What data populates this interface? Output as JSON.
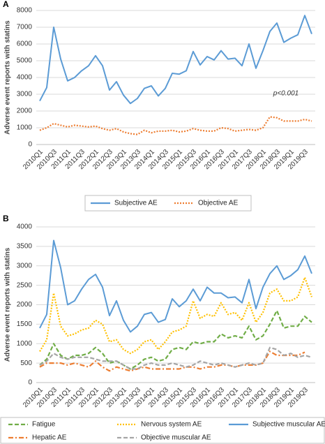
{
  "chart_data": [
    {
      "type": "line",
      "panel_label": "A",
      "y_label": "Adverse event reports with statins",
      "annotation": "p<0.001",
      "categories": [
        "2010Q1",
        null,
        "2010Q3",
        null,
        "2011Q1",
        null,
        "2011Q3",
        null,
        "2012Q1",
        null,
        "2012Q3",
        null,
        "2013Q1",
        null,
        "2013Q3",
        null,
        "2014Q1",
        null,
        "2014Q3",
        null,
        "2015Q1",
        null,
        "2015Q3",
        null,
        "2016Q1",
        null,
        "2016Q3",
        null,
        "2017Q1",
        null,
        "2017Q3",
        null,
        "2018Q1",
        null,
        "2018Q3",
        null,
        "2019Q1",
        null,
        "2019Q3",
        null
      ],
      "ylim": [
        0,
        8000
      ],
      "yticks": [
        0,
        1000,
        2000,
        3000,
        4000,
        5000,
        6000,
        7000,
        8000
      ],
      "grid": true,
      "series": [
        {
          "name": "Subjective AE",
          "color": "#5b9bd5",
          "style": "solid",
          "values": [
            2600,
            3400,
            7000,
            5100,
            3800,
            4000,
            4400,
            4700,
            5300,
            4700,
            3250,
            3750,
            2950,
            2450,
            2750,
            3350,
            3500,
            2900,
            3350,
            4250,
            4200,
            4400,
            5550,
            4750,
            5250,
            5050,
            5600,
            5100,
            5150,
            4700,
            6000,
            4550,
            5600,
            6750,
            7250,
            6100,
            6350,
            6550,
            7700,
            6600
          ]
        },
        {
          "name": "Objective AE",
          "color": "#ed7d31",
          "style": "dotted",
          "values": [
            850,
            1000,
            1250,
            1150,
            1050,
            1150,
            1100,
            1050,
            1100,
            950,
            850,
            950,
            750,
            650,
            600,
            850,
            700,
            800,
            800,
            850,
            750,
            800,
            950,
            850,
            800,
            800,
            1000,
            950,
            800,
            850,
            900,
            850,
            1000,
            1650,
            1600,
            1400,
            1400,
            1400,
            1500,
            1400
          ]
        }
      ]
    },
    {
      "type": "line",
      "panel_label": "B",
      "y_label": "Adverse event reports with statins",
      "categories": [
        "2010Q1",
        null,
        "2010Q3",
        null,
        "2011Q1",
        null,
        "2011Q3",
        null,
        "2012Q1",
        null,
        "2012Q3",
        null,
        "2013Q1",
        null,
        "2013Q3",
        null,
        "2014Q1",
        null,
        "2014Q3",
        null,
        "2015Q1",
        null,
        "2015Q3",
        null,
        "2016Q1",
        null,
        "2016Q3",
        null,
        "2017Q1",
        null,
        "2017Q3",
        null,
        "2018Q1",
        null,
        "2018Q3",
        null,
        "2019Q1",
        null,
        "2019Q3",
        null
      ],
      "ylim": [
        0,
        4000
      ],
      "yticks": [
        0,
        500,
        1000,
        1500,
        2000,
        2500,
        3000,
        3500,
        4000
      ],
      "grid": true,
      "series": [
        {
          "name": "Fatigue",
          "color": "#70ad47",
          "style": "dashed",
          "values": [
            450,
            600,
            1000,
            700,
            600,
            700,
            700,
            750,
            900,
            750,
            500,
            550,
            450,
            350,
            450,
            600,
            650,
            550,
            600,
            850,
            900,
            850,
            1050,
            1000,
            1050,
            1050,
            1250,
            1150,
            1200,
            1150,
            1450,
            1100,
            1200,
            1500,
            1850,
            1400,
            1450,
            1450,
            1700,
            1550
          ]
        },
        {
          "name": "Nervous system AE",
          "color": "#ffc000",
          "style": "dotted",
          "values": [
            800,
            1100,
            2300,
            1450,
            1200,
            1250,
            1350,
            1400,
            1600,
            1500,
            1050,
            1100,
            850,
            750,
            850,
            1050,
            1100,
            850,
            1050,
            1300,
            1350,
            1450,
            2100,
            1650,
            1750,
            1700,
            2050,
            1750,
            1800,
            1600,
            2050,
            1550,
            1800,
            2300,
            2400,
            2100,
            2100,
            2200,
            2700,
            2200
          ]
        },
        {
          "name": "Subjective muscular  AE",
          "color": "#5b9bd5",
          "style": "solid",
          "values": [
            1400,
            1750,
            3650,
            2950,
            2000,
            2100,
            2400,
            2650,
            2780,
            2450,
            1720,
            2100,
            1600,
            1300,
            1450,
            1750,
            1800,
            1550,
            1620,
            2150,
            1950,
            2100,
            2400,
            2100,
            2450,
            2300,
            2300,
            2180,
            2200,
            2050,
            2650,
            1900,
            2450,
            2800,
            3000,
            2650,
            2750,
            2900,
            3250,
            2800
          ]
        },
        {
          "name": "Hepatic AE",
          "color": "#ed7d31",
          "style": "dashdot",
          "values": [
            400,
            500,
            500,
            500,
            450,
            500,
            450,
            400,
            550,
            400,
            300,
            400,
            350,
            300,
            350,
            400,
            350,
            350,
            350,
            350,
            350,
            400,
            400,
            350,
            400,
            400,
            450,
            450,
            400,
            450,
            450,
            450,
            500,
            800,
            700,
            700,
            700,
            700,
            780,
            null
          ]
        },
        {
          "name": "Objective muscular  AE",
          "color": "#a5a5a5",
          "style": "dashed",
          "values": [
            450,
            550,
            750,
            650,
            600,
            650,
            650,
            650,
            600,
            550,
            550,
            550,
            450,
            350,
            350,
            450,
            500,
            450,
            450,
            500,
            450,
            400,
            450,
            550,
            500,
            450,
            500,
            450,
            400,
            450,
            500,
            450,
            500,
            900,
            850,
            700,
            750,
            650,
            700,
            650
          ]
        }
      ]
    }
  ]
}
